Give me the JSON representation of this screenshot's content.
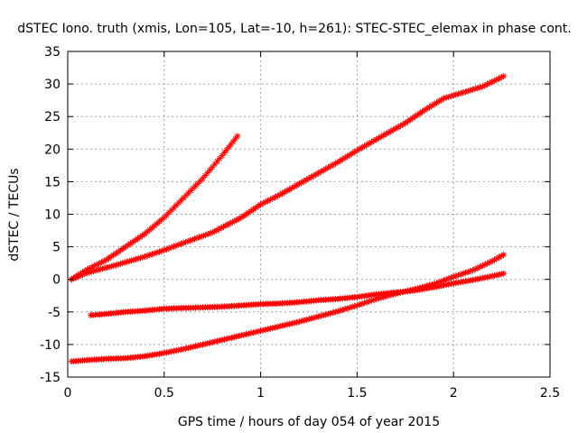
{
  "chart_data": {
    "type": "scatter",
    "title": "dSTEC Iono. truth (xmis, Lon=105, Lat=-10, h=261): STEC-STEC_elemax in phase cont.",
    "xlabel": "GPS time / hours of day 054 of year 2015",
    "ylabel": "dSTEC  / TECUs",
    "xlim": [
      0,
      2.5
    ],
    "ylim": [
      -15,
      35
    ],
    "xticks": [
      0,
      0.5,
      1,
      1.5,
      2,
      2.5
    ],
    "xtick_labels": [
      "0",
      "0.5",
      "1",
      "1.5",
      "2",
      "2.5"
    ],
    "yticks": [
      -15,
      -10,
      -5,
      0,
      5,
      10,
      15,
      20,
      25,
      30,
      35
    ],
    "ytick_labels": [
      "-15",
      "-10",
      "-5",
      "0",
      "5",
      "10",
      "15",
      "20",
      "25",
      "30",
      "35"
    ],
    "grid": true,
    "marker": "+ and x (star)",
    "color": "#ff0000",
    "series": [
      {
        "x": [
          0.02,
          0.1,
          0.2,
          0.3,
          0.4,
          0.5,
          0.6,
          0.7,
          0.8,
          0.88
        ],
        "y": [
          0.0,
          1.5,
          3.0,
          5.0,
          7.0,
          9.5,
          12.5,
          15.5,
          19.0,
          22.0
        ]
      },
      {
        "x": [
          0.02,
          0.1,
          0.25,
          0.4,
          0.5,
          0.6,
          0.75,
          0.9,
          1.0,
          1.1,
          1.25,
          1.4,
          1.5,
          1.6,
          1.75,
          1.85,
          1.95,
          2.05,
          2.15,
          2.26
        ],
        "y": [
          0.0,
          1.0,
          2.2,
          3.5,
          4.5,
          5.6,
          7.2,
          9.5,
          11.5,
          13.0,
          15.5,
          18.0,
          19.8,
          21.5,
          24.0,
          26.0,
          27.8,
          28.7,
          29.6,
          31.2
        ]
      },
      {
        "x": [
          0.12,
          0.2,
          0.3,
          0.4,
          0.5,
          0.6,
          0.7,
          0.8,
          0.9,
          1.0,
          1.1,
          1.2,
          1.3,
          1.4,
          1.5,
          1.6,
          1.7,
          1.8,
          1.9,
          2.0,
          2.1,
          2.2,
          2.26
        ],
        "y": [
          -5.5,
          -5.3,
          -5.0,
          -4.8,
          -4.5,
          -4.4,
          -4.3,
          -4.2,
          -4.0,
          -3.8,
          -3.7,
          -3.5,
          -3.2,
          -3.0,
          -2.7,
          -2.3,
          -2.0,
          -1.7,
          -1.2,
          -0.6,
          -0.1,
          0.5,
          0.9
        ]
      },
      {
        "x": [
          0.02,
          0.1,
          0.2,
          0.3,
          0.4,
          0.5,
          0.6,
          0.7,
          0.8,
          0.9,
          1.0,
          1.1,
          1.2,
          1.3,
          1.4,
          1.5,
          1.6,
          1.7,
          1.8,
          1.9,
          2.0,
          2.1,
          2.2,
          2.26
        ],
        "y": [
          -12.6,
          -12.4,
          -12.2,
          -12.1,
          -11.8,
          -11.3,
          -10.7,
          -10.0,
          -9.3,
          -8.6,
          -7.9,
          -7.2,
          -6.5,
          -5.7,
          -4.9,
          -4.0,
          -3.0,
          -2.2,
          -1.5,
          -0.7,
          0.4,
          1.4,
          2.8,
          3.8
        ]
      }
    ]
  }
}
